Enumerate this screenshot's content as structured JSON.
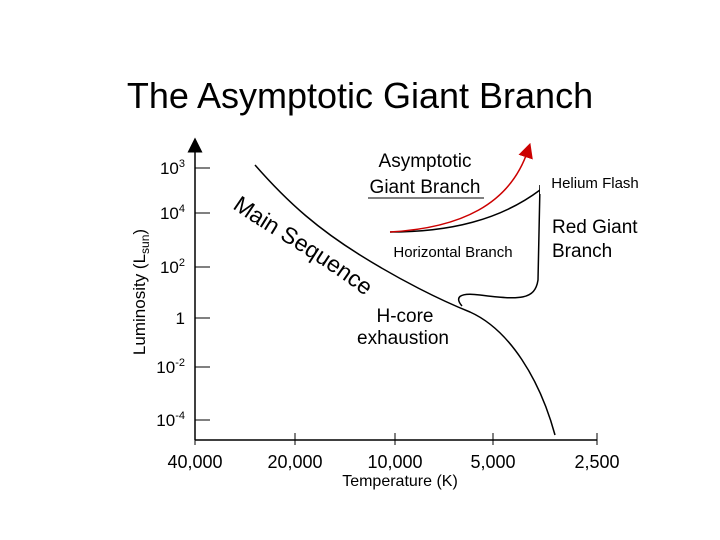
{
  "header": {
    "title": "The Asymptotic Giant Branch"
  },
  "y_axis": {
    "label": "Luminosity (L",
    "label_sub": "sun",
    "label_end": ")",
    "ticks": [
      {
        "base": "10",
        "sup": "3"
      },
      {
        "base": "10",
        "sup": "4"
      },
      {
        "base": "10",
        "sup": "2"
      },
      {
        "base": "1",
        "sup": ""
      },
      {
        "base": "10",
        "sup": "-2"
      },
      {
        "base": "10",
        "sup": "-4"
      }
    ]
  },
  "x_axis": {
    "label": "Temperature (K)",
    "ticks": [
      "40,000",
      "20,000",
      "10,000",
      "5,000",
      "2,500"
    ]
  },
  "annotations": {
    "agb_1": "Asymptotic",
    "agb_2": "Giant Branch",
    "helium_flash": "Helium Flash",
    "rgb_1": "Red Giant",
    "rgb_2": "Branch",
    "horizontal_branch": "Horizontal Branch",
    "hcore_1": "H-core",
    "hcore_2": "exhaustion",
    "main_sequence": "Main Sequence"
  }
}
